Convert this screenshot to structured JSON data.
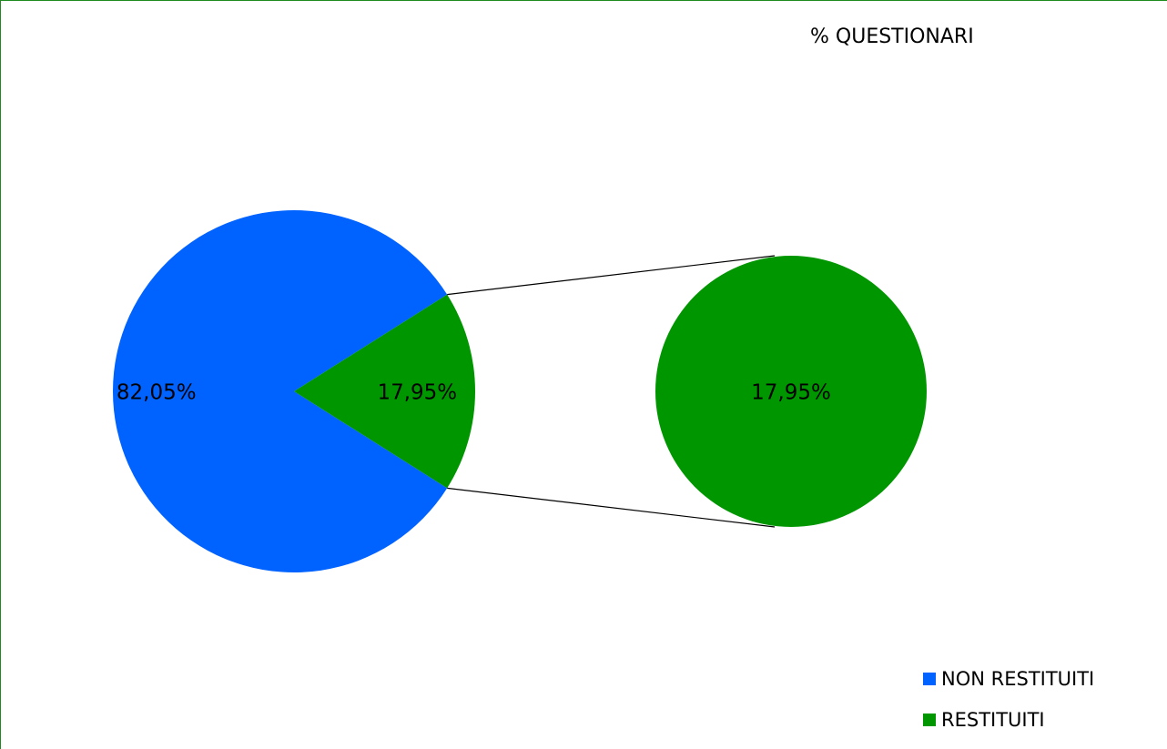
{
  "chart_data": {
    "type": "pie",
    "title": "% QUESTIONARI",
    "categories": [
      "NON RESTITUITI",
      "RESTITUITI"
    ],
    "values": [
      82.05,
      17.95
    ],
    "value_labels": [
      "82,05%",
      "17,95%"
    ],
    "secondary_label": "17,95%",
    "style": "pie-of-pie",
    "legend_position": "bottom-right",
    "colors": {
      "NON RESTITUITI": "#0062ff",
      "RESTITUITI": "#009600",
      "frame": "#1f8a1f",
      "connector": "#000000"
    }
  }
}
